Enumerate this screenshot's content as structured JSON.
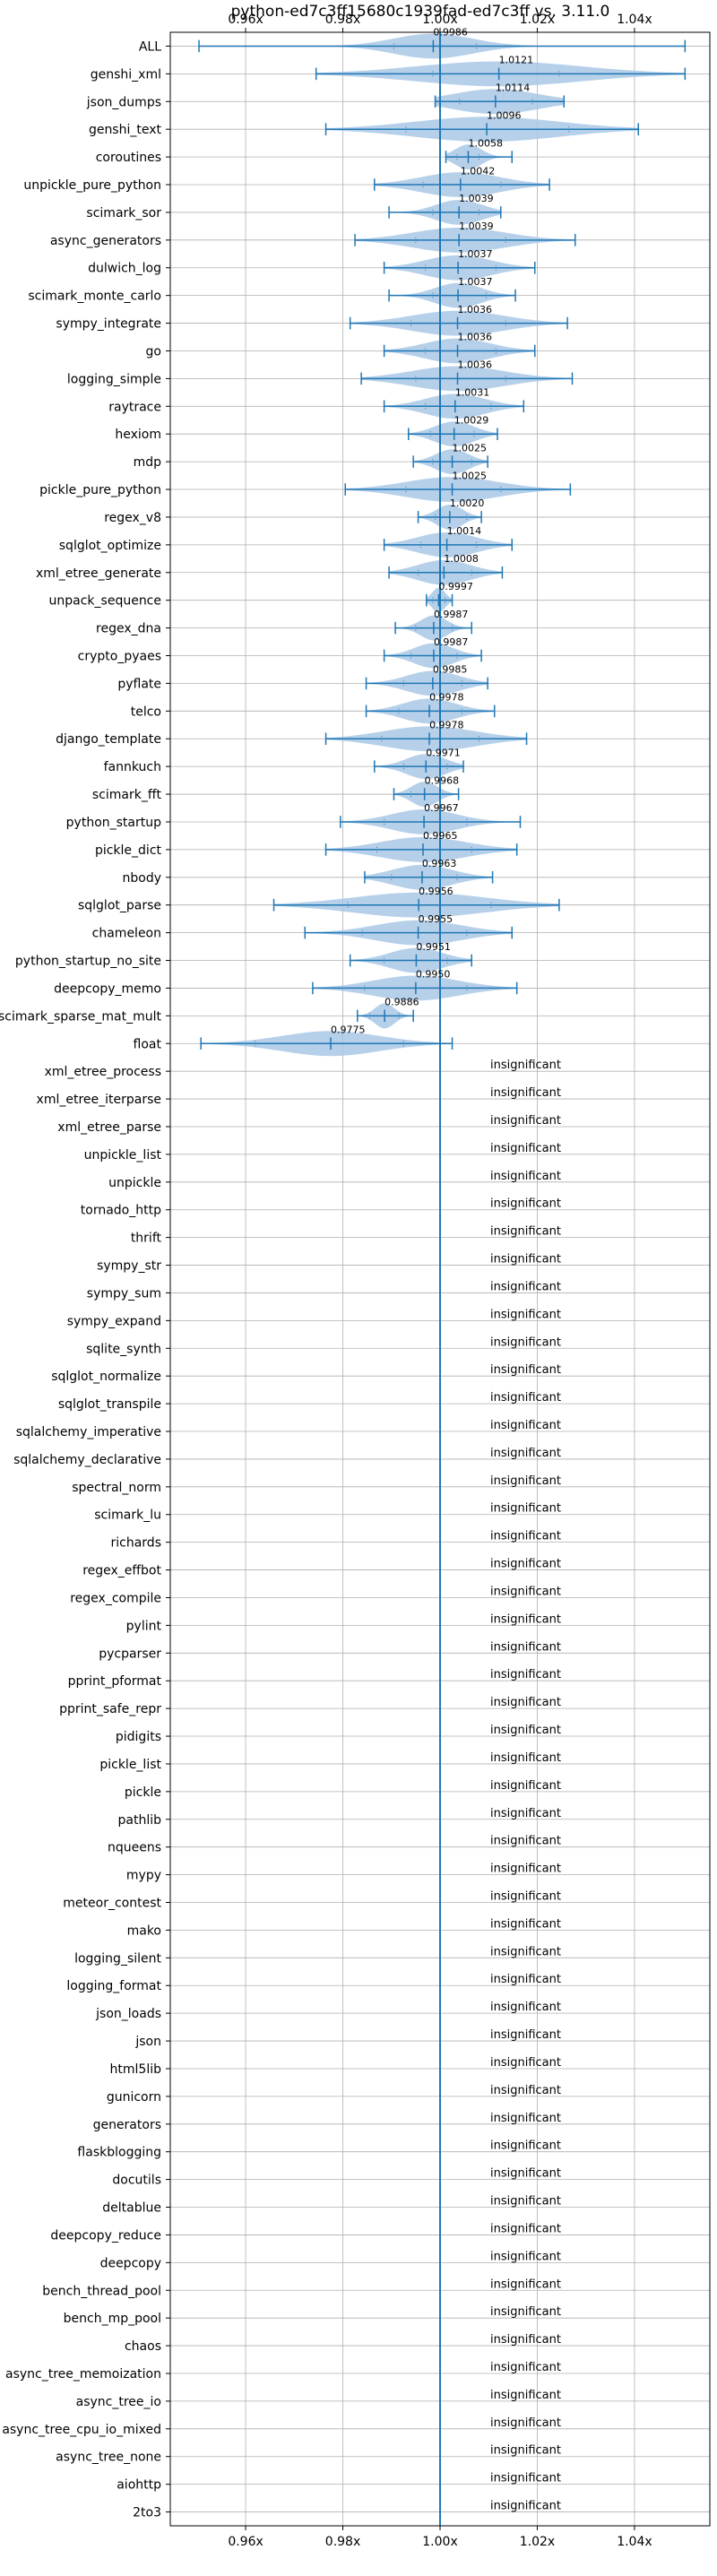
{
  "chart_data": {
    "type": "violin",
    "title": "python-ed7c3ff15680c1939fad-ed7c3ff vs. 3.11.0",
    "x_ticks": [
      {
        "value": 0.96,
        "label": "0.96x"
      },
      {
        "value": 0.98,
        "label": "0.98x"
      },
      {
        "value": 1.0,
        "label": "1.00x"
      },
      {
        "value": 1.02,
        "label": "1.02x"
      },
      {
        "value": 1.04,
        "label": "1.04x"
      }
    ],
    "xlim": [
      0.9445,
      1.0555
    ],
    "reference_line": 1.0,
    "grid": true,
    "insignificant_label": "insignificant",
    "benchmarks": [
      {
        "name": "ALL",
        "mean_label": "0.9986",
        "mean": 0.9986,
        "min": 0.9504,
        "max": 1.0504,
        "q1": 0.9905,
        "q3": 1.0075,
        "spread": 0.012
      },
      {
        "name": "genshi_xml",
        "mean_label": "1.0121",
        "mean": 1.0121,
        "min": 0.9745,
        "max": 1.0504,
        "q1": 0.9985,
        "q3": 1.0245,
        "spread": 0.025
      },
      {
        "name": "json_dumps",
        "mean_label": "1.0114",
        "mean": 1.0114,
        "min": 0.999,
        "max": 1.0255,
        "q1": 1.004,
        "q3": 1.019,
        "spread": 0.013
      },
      {
        "name": "genshi_text",
        "mean_label": "1.0096",
        "mean": 1.0096,
        "min": 0.9765,
        "max": 1.0408,
        "q1": 0.993,
        "q3": 1.0265,
        "spread": 0.022
      },
      {
        "name": "coroutines",
        "mean_label": "1.0058",
        "mean": 1.0058,
        "min": 1.0012,
        "max": 1.0148,
        "q1": 1.0035,
        "q3": 1.008,
        "spread": 0.004
      },
      {
        "name": "unpickle_pure_python",
        "mean_label": "1.0042",
        "mean": 1.0042,
        "min": 0.9865,
        "max": 1.0225,
        "q1": 0.9965,
        "q3": 1.0125,
        "spread": 0.012
      },
      {
        "name": "scimark_sor",
        "mean_label": "1.0039",
        "mean": 1.0039,
        "min": 0.9895,
        "max": 1.0125,
        "q1": 0.9985,
        "q3": 1.008,
        "spread": 0.007
      },
      {
        "name": "async_generators",
        "mean_label": "1.0039",
        "mean": 1.0039,
        "min": 0.9825,
        "max": 1.0278,
        "q1": 0.995,
        "q3": 1.0135,
        "spread": 0.014
      },
      {
        "name": "dulwich_log",
        "mean_label": "1.0037",
        "mean": 1.0037,
        "min": 0.9885,
        "max": 1.0195,
        "q1": 0.997,
        "q3": 1.0115,
        "spread": 0.01
      },
      {
        "name": "scimark_monte_carlo",
        "mean_label": "1.0037",
        "mean": 1.0037,
        "min": 0.9895,
        "max": 1.0155,
        "q1": 0.9985,
        "q3": 1.0095,
        "spread": 0.007
      },
      {
        "name": "sympy_integrate",
        "mean_label": "1.0036",
        "mean": 1.0036,
        "min": 0.9815,
        "max": 1.0262,
        "q1": 0.994,
        "q3": 1.0135,
        "spread": 0.014
      },
      {
        "name": "go",
        "mean_label": "1.0036",
        "mean": 1.0036,
        "min": 0.9885,
        "max": 1.0195,
        "q1": 0.997,
        "q3": 1.0115,
        "spread": 0.01
      },
      {
        "name": "logging_simple",
        "mean_label": "1.0036",
        "mean": 1.0036,
        "min": 0.9838,
        "max": 1.0272,
        "q1": 0.995,
        "q3": 1.0135,
        "spread": 0.014
      },
      {
        "name": "raytrace",
        "mean_label": "1.0031",
        "mean": 1.0031,
        "min": 0.9885,
        "max": 1.0172,
        "q1": 0.997,
        "q3": 1.0105,
        "spread": 0.009
      },
      {
        "name": "hexiom",
        "mean_label": "1.0029",
        "mean": 1.0029,
        "min": 0.9935,
        "max": 1.0118,
        "q1": 0.998,
        "q3": 1.007,
        "spread": 0.006
      },
      {
        "name": "mdp",
        "mean_label": "1.0025",
        "mean": 1.0025,
        "min": 0.9945,
        "max": 1.0098,
        "q1": 0.9985,
        "q3": 1.0065,
        "spread": 0.005
      },
      {
        "name": "pickle_pure_python",
        "mean_label": "1.0025",
        "mean": 1.0025,
        "min": 0.9805,
        "max": 1.0268,
        "q1": 0.993,
        "q3": 1.0125,
        "spread": 0.014
      },
      {
        "name": "regex_v8",
        "mean_label": "1.0020",
        "mean": 1.002,
        "min": 0.9955,
        "max": 1.0085,
        "q1": 0.999,
        "q3": 1.0055,
        "spread": 0.004
      },
      {
        "name": "sqlglot_optimize",
        "mean_label": "1.0014",
        "mean": 1.0014,
        "min": 0.9885,
        "max": 1.0148,
        "q1": 0.996,
        "q3": 1.0075,
        "spread": 0.009
      },
      {
        "name": "xml_etree_generate",
        "mean_label": "1.0008",
        "mean": 1.0008,
        "min": 0.9895,
        "max": 1.0128,
        "q1": 0.9955,
        "q3": 1.0065,
        "spread": 0.008
      },
      {
        "name": "unpack_sequence",
        "mean_label": "0.9997",
        "mean": 0.9997,
        "min": 0.9972,
        "max": 1.0025,
        "q1": 0.9985,
        "q3": 1.001,
        "spread": 0.002
      },
      {
        "name": "regex_dna",
        "mean_label": "0.9987",
        "mean": 0.9987,
        "min": 0.9908,
        "max": 1.0065,
        "q1": 0.995,
        "q3": 1.0025,
        "spread": 0.004
      },
      {
        "name": "crypto_pyaes",
        "mean_label": "0.9987",
        "mean": 0.9987,
        "min": 0.9885,
        "max": 1.0085,
        "q1": 0.994,
        "q3": 1.0035,
        "spread": 0.006
      },
      {
        "name": "pyflate",
        "mean_label": "0.9985",
        "mean": 0.9985,
        "min": 0.9848,
        "max": 1.0098,
        "q1": 0.9925,
        "q3": 1.0045,
        "spread": 0.008
      },
      {
        "name": "telco",
        "mean_label": "0.9978",
        "mean": 0.9978,
        "min": 0.9848,
        "max": 1.0112,
        "q1": 0.9915,
        "q3": 1.0045,
        "spread": 0.008
      },
      {
        "name": "django_template",
        "mean_label": "0.9978",
        "mean": 0.9978,
        "min": 0.9765,
        "max": 1.0178,
        "q1": 0.988,
        "q3": 1.008,
        "spread": 0.014
      },
      {
        "name": "fannkuch",
        "mean_label": "0.9971",
        "mean": 0.9971,
        "min": 0.9865,
        "max": 1.0048,
        "q1": 0.9925,
        "q3": 1.0015,
        "spread": 0.006
      },
      {
        "name": "scimark_fft",
        "mean_label": "0.9968",
        "mean": 0.9968,
        "min": 0.9905,
        "max": 1.0038,
        "q1": 0.994,
        "q3": 1.0,
        "spread": 0.004
      },
      {
        "name": "python_startup",
        "mean_label": "0.9967",
        "mean": 0.9967,
        "min": 0.9795,
        "max": 1.0165,
        "q1": 0.9885,
        "q3": 1.0055,
        "spread": 0.01
      },
      {
        "name": "pickle_dict",
        "mean_label": "0.9965",
        "mean": 0.9965,
        "min": 0.9765,
        "max": 1.0158,
        "q1": 0.987,
        "q3": 1.0065,
        "spread": 0.013
      },
      {
        "name": "nbody",
        "mean_label": "0.9963",
        "mean": 0.9963,
        "min": 0.9845,
        "max": 1.0108,
        "q1": 0.99,
        "q3": 1.0035,
        "spread": 0.009
      },
      {
        "name": "sqlglot_parse",
        "mean_label": "0.9956",
        "mean": 0.9956,
        "min": 0.9658,
        "max": 1.0245,
        "q1": 0.981,
        "q3": 1.0105,
        "spread": 0.02
      },
      {
        "name": "chameleon",
        "mean_label": "0.9955",
        "mean": 0.9955,
        "min": 0.9722,
        "max": 1.0148,
        "q1": 0.984,
        "q3": 1.0055,
        "spread": 0.013
      },
      {
        "name": "python_startup_no_site",
        "mean_label": "0.9951",
        "mean": 0.9951,
        "min": 0.9815,
        "max": 1.0065,
        "q1": 0.9885,
        "q3": 1.0015,
        "spread": 0.008
      },
      {
        "name": "deepcopy_memo",
        "mean_label": "0.9950",
        "mean": 0.995,
        "min": 0.9738,
        "max": 1.0158,
        "q1": 0.9845,
        "q3": 1.0055,
        "spread": 0.013
      },
      {
        "name": "scimark_sparse_mat_mult",
        "mean_label": "0.9886",
        "mean": 0.9886,
        "min": 0.983,
        "max": 0.9945,
        "q1": 0.9855,
        "q3": 0.9915,
        "spread": 0.003
      },
      {
        "name": "float",
        "mean_label": "0.9775",
        "mean": 0.9775,
        "min": 0.9508,
        "max": 1.0025,
        "q1": 0.962,
        "q3": 0.9925,
        "spread": 0.015
      },
      {
        "name": "xml_etree_process",
        "significant": false
      },
      {
        "name": "xml_etree_iterparse",
        "significant": false
      },
      {
        "name": "xml_etree_parse",
        "significant": false
      },
      {
        "name": "unpickle_list",
        "significant": false
      },
      {
        "name": "unpickle",
        "significant": false
      },
      {
        "name": "tornado_http",
        "significant": false
      },
      {
        "name": "thrift",
        "significant": false
      },
      {
        "name": "sympy_str",
        "significant": false
      },
      {
        "name": "sympy_sum",
        "significant": false
      },
      {
        "name": "sympy_expand",
        "significant": false
      },
      {
        "name": "sqlite_synth",
        "significant": false
      },
      {
        "name": "sqlglot_normalize",
        "significant": false
      },
      {
        "name": "sqlglot_transpile",
        "significant": false
      },
      {
        "name": "sqlalchemy_imperative",
        "significant": false
      },
      {
        "name": "sqlalchemy_declarative",
        "significant": false
      },
      {
        "name": "spectral_norm",
        "significant": false
      },
      {
        "name": "scimark_lu",
        "significant": false
      },
      {
        "name": "richards",
        "significant": false
      },
      {
        "name": "regex_effbot",
        "significant": false
      },
      {
        "name": "regex_compile",
        "significant": false
      },
      {
        "name": "pylint",
        "significant": false
      },
      {
        "name": "pycparser",
        "significant": false
      },
      {
        "name": "pprint_pformat",
        "significant": false
      },
      {
        "name": "pprint_safe_repr",
        "significant": false
      },
      {
        "name": "pidigits",
        "significant": false
      },
      {
        "name": "pickle_list",
        "significant": false
      },
      {
        "name": "pickle",
        "significant": false
      },
      {
        "name": "pathlib",
        "significant": false
      },
      {
        "name": "nqueens",
        "significant": false
      },
      {
        "name": "mypy",
        "significant": false
      },
      {
        "name": "meteor_contest",
        "significant": false
      },
      {
        "name": "mako",
        "significant": false
      },
      {
        "name": "logging_silent",
        "significant": false
      },
      {
        "name": "logging_format",
        "significant": false
      },
      {
        "name": "json_loads",
        "significant": false
      },
      {
        "name": "json",
        "significant": false
      },
      {
        "name": "html5lib",
        "significant": false
      },
      {
        "name": "gunicorn",
        "significant": false
      },
      {
        "name": "generators",
        "significant": false
      },
      {
        "name": "flaskblogging",
        "significant": false
      },
      {
        "name": "docutils",
        "significant": false
      },
      {
        "name": "deltablue",
        "significant": false
      },
      {
        "name": "deepcopy_reduce",
        "significant": false
      },
      {
        "name": "deepcopy",
        "significant": false
      },
      {
        "name": "bench_thread_pool",
        "significant": false
      },
      {
        "name": "bench_mp_pool",
        "significant": false
      },
      {
        "name": "chaos",
        "significant": false
      },
      {
        "name": "async_tree_memoization",
        "significant": false
      },
      {
        "name": "async_tree_io",
        "significant": false
      },
      {
        "name": "async_tree_cpu_io_mixed",
        "significant": false
      },
      {
        "name": "async_tree_none",
        "significant": false
      },
      {
        "name": "aiohttp",
        "significant": false
      },
      {
        "name": "2to3",
        "significant": false
      }
    ]
  },
  "colors": {
    "violin_fill": "#a9c8e6",
    "line": "#1f77b4",
    "grid": "#b0b0b0",
    "text": "#000000"
  }
}
